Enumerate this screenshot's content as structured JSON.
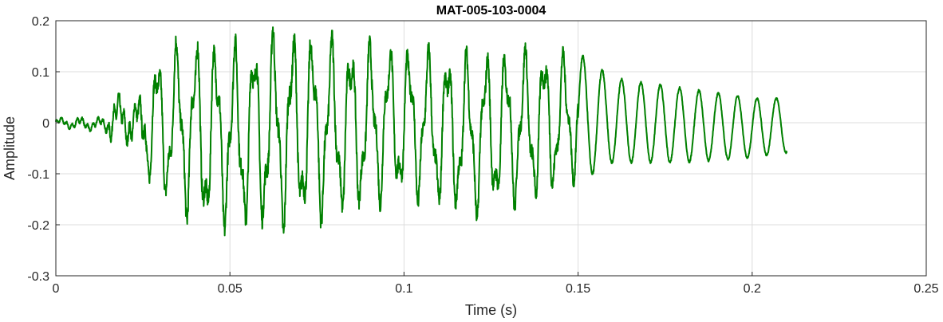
{
  "chart_data": {
    "type": "line",
    "title": "MAT-005-103-0004",
    "xlabel": "Time (s)",
    "ylabel": "Amplitude",
    "xlim": [
      0,
      0.25
    ],
    "ylim": [
      -0.3,
      0.2
    ],
    "xticks": [
      0,
      0.05,
      0.1,
      0.15,
      0.2,
      0.25
    ],
    "xtick_labels": [
      "0",
      "0.05",
      "0.1",
      "0.15",
      "0.2",
      "0.25"
    ],
    "yticks": [
      -0.3,
      -0.2,
      -0.1,
      0,
      0.1,
      0.2
    ],
    "ytick_labels": [
      "-0.3",
      "-0.2",
      "-0.1",
      "0",
      "0.1",
      "0.2"
    ],
    "grid": true,
    "series": [
      {
        "color": "#008000",
        "x_start": 0,
        "x_end": 0.21,
        "envelope": {
          "t": [
            0,
            0.014,
            0.016,
            0.024,
            0.028,
            0.033,
            0.042,
            0.05,
            0.064,
            0.08,
            0.1,
            0.12,
            0.14,
            0.15,
            0.16,
            0.18,
            0.2,
            0.21
          ],
          "max": [
            0.01,
            0.012,
            0.06,
            0.05,
            0.14,
            0.17,
            0.18,
            0.17,
            0.2,
            0.18,
            0.16,
            0.15,
            0.16,
            0.14,
            0.09,
            0.07,
            0.05,
            0.05
          ],
          "min": [
            -0.01,
            -0.02,
            -0.04,
            -0.05,
            -0.16,
            -0.17,
            -0.23,
            -0.22,
            -0.23,
            -0.2,
            -0.16,
            -0.2,
            -0.16,
            -0.12,
            -0.08,
            -0.08,
            -0.07,
            -0.06
          ]
        }
      }
    ]
  }
}
